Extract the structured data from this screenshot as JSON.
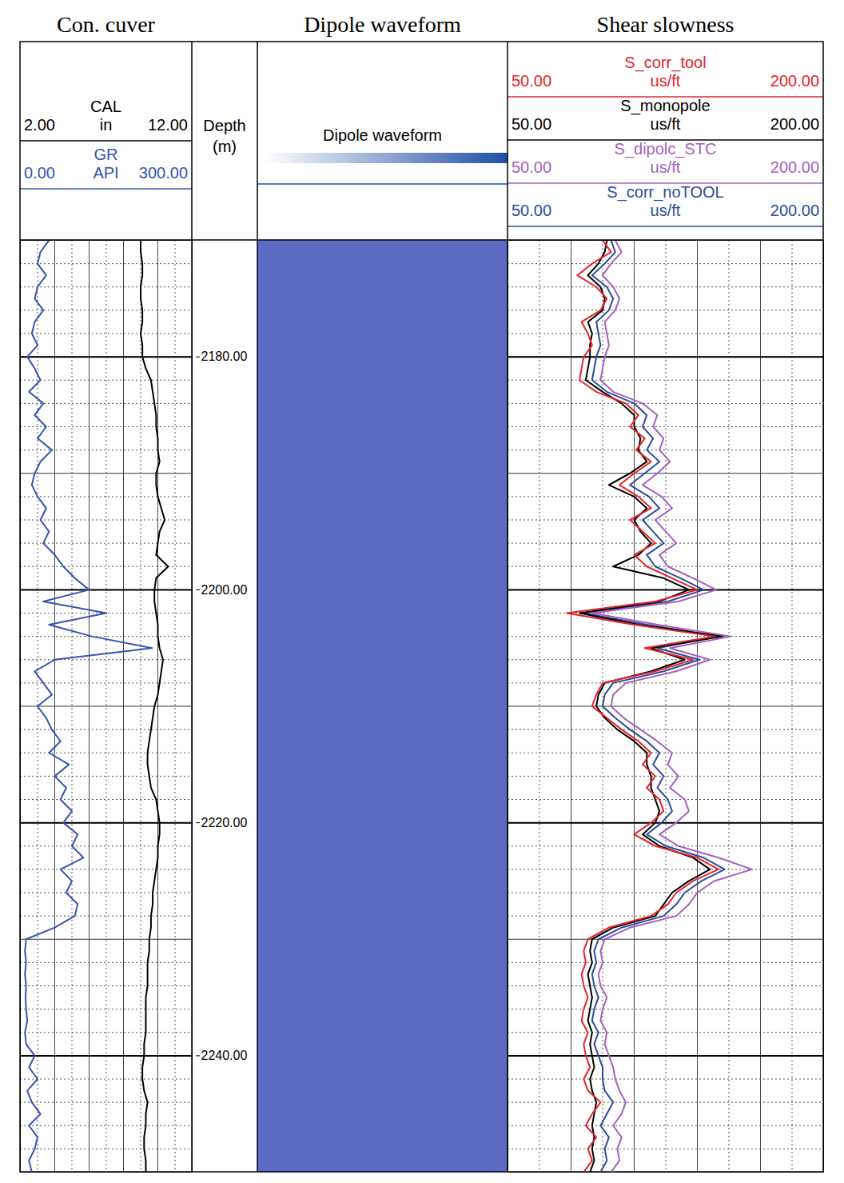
{
  "chart_data": [
    {
      "type": "line",
      "title": "Con. cuver",
      "grid": true,
      "y": [
        2170,
        2171,
        2172,
        2173,
        2174,
        2175,
        2176,
        2177,
        2178,
        2179,
        2180,
        2181,
        2182,
        2183,
        2184,
        2185,
        2186,
        2187,
        2188,
        2189,
        2190,
        2191,
        2192,
        2193,
        2194,
        2195,
        2196,
        2197,
        2198,
        2199,
        2200,
        2201,
        2202,
        2203,
        2204,
        2205,
        2206,
        2207,
        2208,
        2209,
        2210,
        2211,
        2212,
        2213,
        2214,
        2215,
        2216,
        2217,
        2218,
        2219,
        2220,
        2221,
        2222,
        2223,
        2224,
        2225,
        2226,
        2227,
        2228,
        2229,
        2230,
        2231,
        2232,
        2233,
        2234,
        2235,
        2236,
        2237,
        2238,
        2239,
        2240,
        2241,
        2242,
        2243,
        2244,
        2245,
        2246,
        2247,
        2248,
        2249,
        2250
      ],
      "series": [
        {
          "name": "CAL",
          "unit": "in",
          "color": "#000000",
          "xlim": [
            2,
            12
          ],
          "xticks": [
            {
              "value": 2,
              "label": "2.00"
            },
            {
              "value": 12,
              "label": "12.00"
            }
          ],
          "values": [
            9.0,
            9.0,
            9.1,
            9.1,
            9.0,
            9.0,
            9.1,
            9.1,
            9.0,
            9.1,
            9.1,
            9.3,
            9.6,
            9.7,
            9.8,
            9.9,
            9.9,
            10.0,
            10.0,
            10.1,
            9.9,
            9.9,
            10.0,
            10.2,
            10.4,
            10.1,
            10.0,
            9.9,
            10.6,
            9.9,
            9.8,
            9.8,
            9.9,
            10.0,
            10.0,
            10.1,
            10.3,
            10.2,
            10.1,
            10.0,
            9.8,
            9.7,
            9.6,
            9.5,
            9.4,
            9.4,
            9.5,
            9.6,
            9.9,
            10.0,
            10.1,
            10.1,
            10.0,
            10.0,
            9.9,
            9.8,
            9.7,
            9.7,
            9.6,
            9.6,
            9.5,
            9.5,
            9.4,
            9.4,
            9.4,
            9.3,
            9.3,
            9.3,
            9.3,
            9.2,
            9.2,
            9.1,
            9.1,
            9.2,
            9.4,
            9.3,
            9.3,
            9.2,
            9.2,
            9.3,
            9.3
          ]
        },
        {
          "name": "GR",
          "unit": "API",
          "color": "#3556b0",
          "xlim": [
            0,
            300
          ],
          "xticks": [
            {
              "value": 0,
              "label": "0.00"
            },
            {
              "value": 300,
              "label": "300.00"
            }
          ],
          "values": [
            50,
            35,
            30,
            45,
            30,
            25,
            40,
            25,
            20,
            30,
            12,
            25,
            35,
            15,
            40,
            25,
            45,
            30,
            55,
            35,
            25,
            20,
            30,
            45,
            35,
            50,
            40,
            60,
            75,
            95,
            120,
            40,
            150,
            50,
            125,
            230,
            60,
            25,
            40,
            55,
            30,
            45,
            55,
            70,
            50,
            85,
            60,
            80,
            70,
            90,
            75,
            100,
            90,
            110,
            70,
            90,
            80,
            100,
            95,
            60,
            10,
            8,
            10,
            8,
            10,
            9,
            10,
            12,
            8,
            10,
            25,
            15,
            30,
            12,
            20,
            35,
            15,
            30,
            25,
            15,
            20
          ]
        }
      ]
    },
    {
      "type": "axis",
      "title": "Depth (m)",
      "ylim": [
        2170,
        2250
      ],
      "yticks": [
        {
          "value": 2180,
          "label": "2180.00"
        },
        {
          "value": 2200,
          "label": "2200.00"
        },
        {
          "value": 2220,
          "label": "2220.00"
        },
        {
          "value": 2240,
          "label": "2240.00"
        }
      ]
    },
    {
      "type": "image",
      "title": "Dipole waveform",
      "series": [
        {
          "name": "Dipole waveform",
          "color": "#1f4ea6"
        }
      ]
    },
    {
      "type": "line",
      "title": "Shear slowness",
      "grid": true,
      "y": [
        2170,
        2171,
        2172,
        2173,
        2174,
        2175,
        2176,
        2177,
        2178,
        2179,
        2180,
        2181,
        2182,
        2183,
        2184,
        2185,
        2186,
        2187,
        2188,
        2189,
        2190,
        2191,
        2192,
        2193,
        2194,
        2195,
        2196,
        2197,
        2198,
        2199,
        2200,
        2201,
        2202,
        2203,
        2204,
        2205,
        2206,
        2207,
        2208,
        2209,
        2210,
        2211,
        2212,
        2213,
        2214,
        2215,
        2216,
        2217,
        2218,
        2219,
        2220,
        2221,
        2222,
        2223,
        2224,
        2225,
        2226,
        2227,
        2228,
        2229,
        2230,
        2231,
        2232,
        2233,
        2234,
        2235,
        2236,
        2237,
        2238,
        2239,
        2240,
        2241,
        2242,
        2243,
        2244,
        2245,
        2246,
        2247,
        2248,
        2249,
        2250
      ],
      "series": [
        {
          "name": "S_corr_tool",
          "unit": "us/ft",
          "color": "#e4252b",
          "xlim": [
            50,
            200
          ],
          "xticks": [
            {
              "value": 50,
              "label": "50.00"
            },
            {
              "value": 200,
              "label": "200.00"
            }
          ],
          "values": [
            95,
            99,
            90,
            83,
            92,
            97,
            94,
            85,
            88,
            90,
            86,
            85,
            84,
            92,
            106,
            112,
            108,
            115,
            111,
            118,
            110,
            103,
            112,
            118,
            108,
            114,
            120,
            110,
            116,
            128,
            140,
            120,
            78,
            110,
            148,
            115,
            138,
            120,
            95,
            92,
            90,
            97,
            104,
            112,
            118,
            114,
            120,
            116,
            122,
            124,
            118,
            110,
            120,
            140,
            150,
            138,
            130,
            126,
            118,
            98,
            88,
            86,
            87,
            85,
            86,
            88,
            86,
            85,
            88,
            86,
            87,
            89,
            86,
            88,
            94,
            90,
            87,
            92,
            88,
            90,
            86
          ]
        },
        {
          "name": "S_monopole",
          "unit": "us/ft",
          "color": "#000000",
          "xlim": [
            50,
            200
          ],
          "xticks": [
            {
              "value": 50,
              "label": "50.00"
            },
            {
              "value": 200,
              "label": "200.00"
            }
          ],
          "values": [
            97,
            96,
            93,
            88,
            94,
            96,
            95,
            88,
            90,
            89,
            89,
            88,
            87,
            95,
            104,
            110,
            110,
            113,
            112,
            116,
            108,
            98,
            110,
            116,
            110,
            113,
            118,
            112,
            100,
            124,
            136,
            122,
            84,
            112,
            152,
            118,
            134,
            118,
            96,
            93,
            92,
            96,
            102,
            110,
            116,
            116,
            118,
            118,
            120,
            122,
            120,
            114,
            122,
            138,
            146,
            136,
            128,
            124,
            120,
            100,
            90,
            89,
            90,
            88,
            89,
            90,
            89,
            88,
            90,
            89,
            90,
            91,
            89,
            90,
            92,
            91,
            90,
            91,
            90,
            91,
            89
          ]
        },
        {
          "name": "S_dipolc_STC",
          "unit": "us/ft",
          "color": "#a660c0",
          "xlim": [
            50,
            200
          ],
          "xticks": [
            {
              "value": 50,
              "label": "50.00"
            },
            {
              "value": 200,
              "label": "200.00"
            }
          ],
          "values": [
            101,
            104,
            99,
            95,
            100,
            103,
            101,
            96,
            97,
            98,
            96,
            95,
            94,
            100,
            114,
            121,
            119,
            124,
            122,
            127,
            121,
            114,
            123,
            128,
            120,
            125,
            130,
            122,
            126,
            138,
            149,
            131,
            90,
            121,
            156,
            127,
            146,
            130,
            106,
            100,
            99,
            105,
            113,
            121,
            128,
            126,
            131,
            127,
            134,
            136,
            130,
            122,
            131,
            150,
            166,
            148,
            140,
            136,
            130,
            108,
            96,
            94,
            95,
            93,
            94,
            97,
            95,
            94,
            97,
            96,
            98,
            100,
            101,
            103,
            106,
            104,
            100,
            104,
            102,
            103,
            99
          ]
        },
        {
          "name": "S_corr_noTOOL",
          "unit": "us/ft",
          "color": "#2b4c9c",
          "xlim": [
            50,
            200
          ],
          "xticks": [
            {
              "value": 50,
              "label": "50.00"
            },
            {
              "value": 200,
              "label": "200.00"
            }
          ],
          "values": [
            99,
            101,
            96,
            90,
            97,
            100,
            98,
            92,
            93,
            94,
            92,
            91,
            90,
            97,
            110,
            116,
            114,
            119,
            116,
            122,
            115,
            108,
            117,
            122,
            114,
            119,
            124,
            116,
            120,
            132,
            143,
            126,
            86,
            116,
            151,
            121,
            141,
            124,
            100,
            96,
            95,
            101,
            108,
            116,
            122,
            119,
            124,
            121,
            126,
            128,
            123,
            116,
            125,
            143,
            153,
            142,
            134,
            130,
            124,
            104,
            93,
            91,
            92,
            90,
            91,
            93,
            91,
            90,
            93,
            91,
            93,
            95,
            95,
            96,
            100,
            97,
            94,
            98,
            96,
            97,
            94
          ]
        }
      ]
    }
  ]
}
